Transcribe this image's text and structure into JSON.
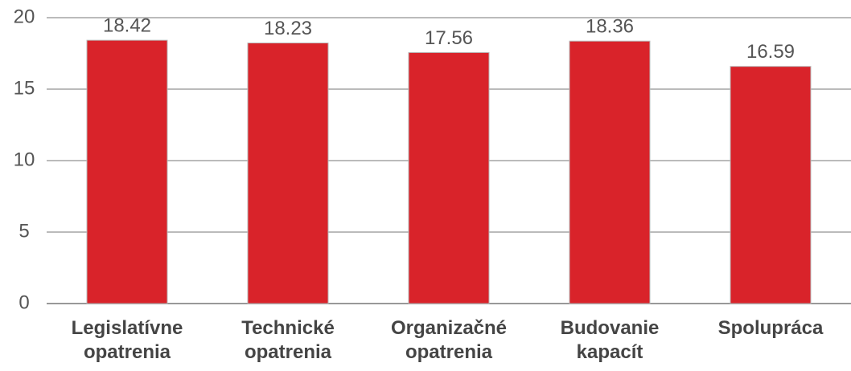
{
  "chart_data": {
    "type": "bar",
    "categories": [
      "Legislatívne opatrenia",
      "Technické opatrenia",
      "Organizačné opatrenia",
      "Budovanie kapacít",
      "Spolupráca"
    ],
    "values": [
      18.42,
      18.23,
      17.56,
      18.36,
      16.59
    ],
    "color": "#d9232a",
    "ylim": [
      0,
      20
    ],
    "yticks": [
      0,
      5,
      10,
      15,
      20
    ],
    "grid": true
  }
}
